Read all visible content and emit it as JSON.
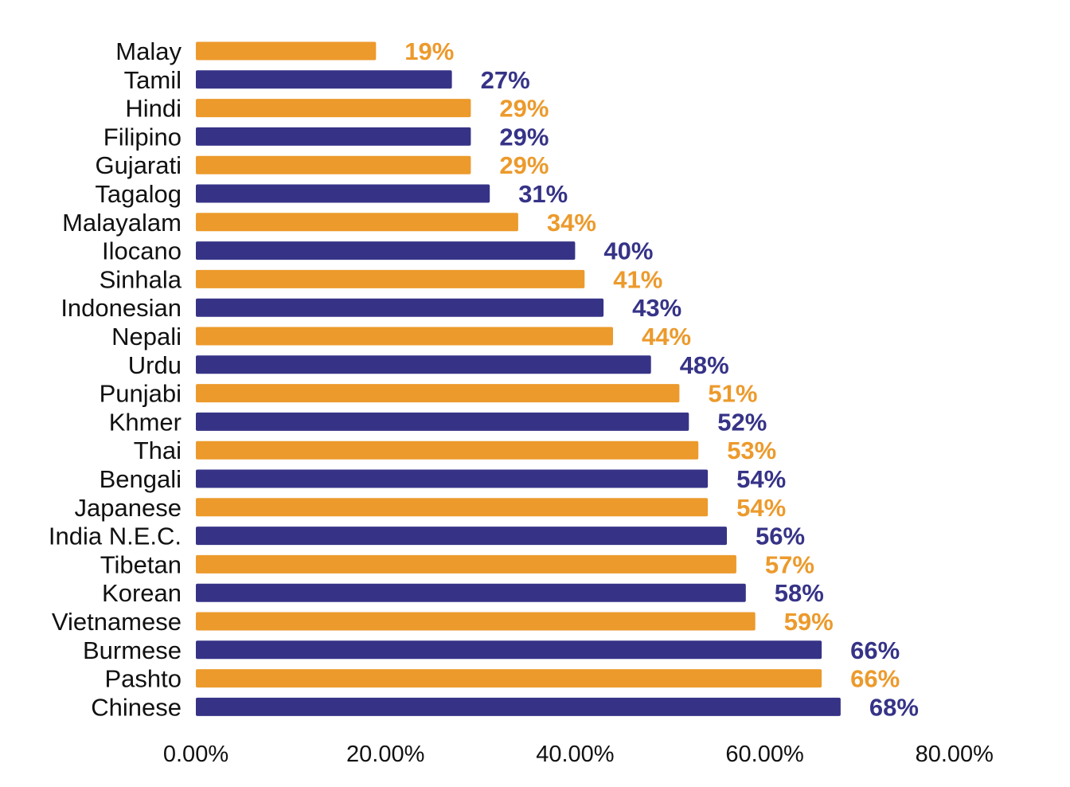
{
  "chart_data": {
    "type": "bar",
    "orientation": "horizontal",
    "title": "",
    "xlabel": "",
    "ylabel": "",
    "xlim": [
      0,
      80
    ],
    "x_ticks": [
      0,
      20,
      40,
      60,
      80
    ],
    "x_tick_labels": [
      "0.00%",
      "20.00%",
      "40.00%",
      "60.00%",
      "80.00%"
    ],
    "grid": false,
    "legend": "none",
    "colors": {
      "orange": "#EC9A2C",
      "navy": "#363387"
    },
    "categories": [
      "Malay",
      "Tamil",
      "Hindi",
      "Filipino",
      "Gujarati",
      "Tagalog",
      "Malayalam",
      "Ilocano",
      "Sinhala",
      "Indonesian",
      "Nepali",
      "Urdu",
      "Punjabi",
      "Khmer",
      "Thai",
      "Bengali",
      "Japanese",
      "India N.E.C.",
      "Tibetan",
      "Korean",
      "Vietnamese",
      "Burmese",
      "Pashto",
      "Chinese"
    ],
    "values": [
      19,
      27,
      29,
      29,
      29,
      31,
      34,
      40,
      41,
      43,
      44,
      48,
      51,
      52,
      53,
      54,
      54,
      56,
      57,
      58,
      59,
      66,
      66,
      68
    ],
    "value_labels": [
      "19%",
      "27%",
      "29%",
      "29%",
      "29%",
      "31%",
      "34%",
      "40%",
      "41%",
      "43%",
      "44%",
      "48%",
      "51%",
      "52%",
      "53%",
      "54%",
      "54%",
      "56%",
      "57%",
      "58%",
      "59%",
      "66%",
      "66%",
      "68%"
    ],
    "bar_colors": [
      "orange",
      "navy",
      "orange",
      "navy",
      "orange",
      "navy",
      "orange",
      "navy",
      "orange",
      "navy",
      "orange",
      "navy",
      "orange",
      "navy",
      "orange",
      "navy",
      "orange",
      "navy",
      "orange",
      "navy",
      "orange",
      "navy",
      "orange",
      "navy"
    ]
  }
}
